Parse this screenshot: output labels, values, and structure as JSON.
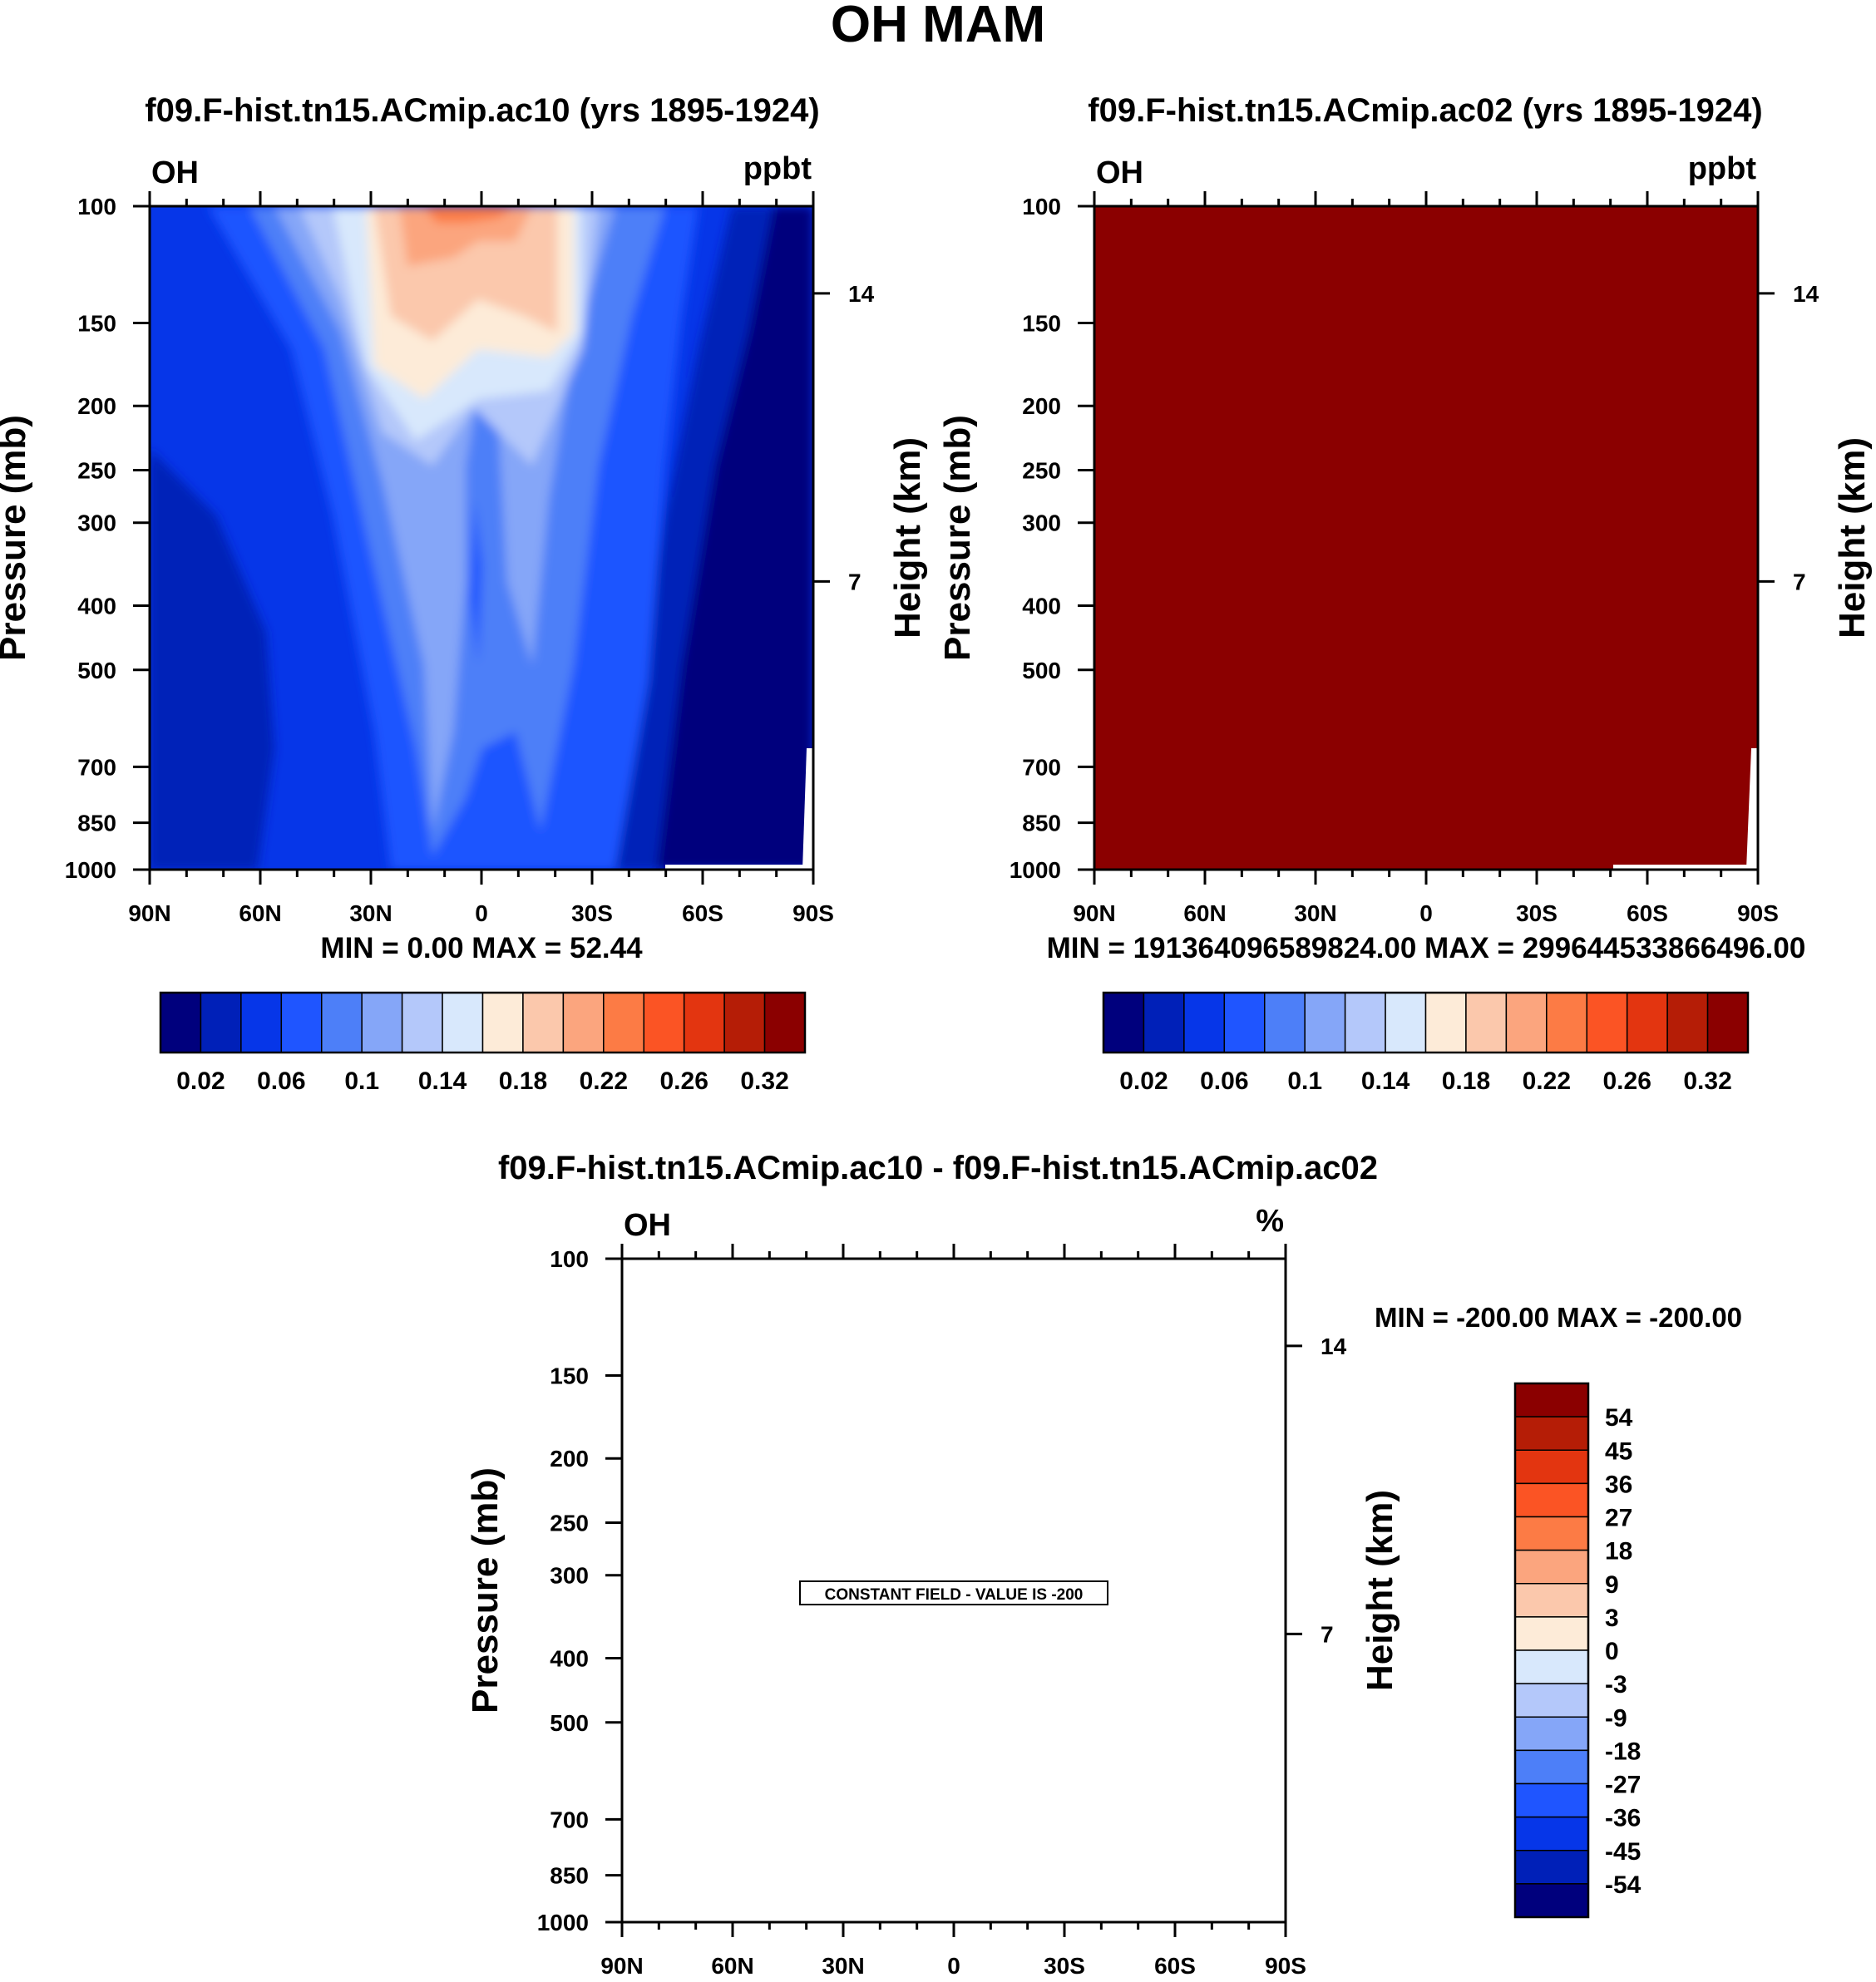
{
  "figure_title": "OH MAM",
  "chart_data": [
    {
      "type": "heatmap",
      "id": "panel-1",
      "title": "f09.F-hist.tn15.ACmip.ac10 (yrs 1895-1924)",
      "variable": "OH",
      "units": "ppbt",
      "ylabel": "Pressure (mb)",
      "ylabel_right": "Height (km)",
      "x_ticks": [
        "90N",
        "60N",
        "30N",
        "0",
        "30S",
        "60S",
        "90S"
      ],
      "y_ticks": [
        "100",
        "150",
        "200",
        "250",
        "300",
        "400",
        "500",
        "700",
        "850",
        "1000"
      ],
      "y_ticks_right": [
        "14",
        "7"
      ],
      "stats": "MIN =   0.00  MAX =  52.44",
      "colorbar_labels": [
        "0.02",
        "0.06",
        "0.1",
        "0.14",
        "0.18",
        "0.22",
        "0.26",
        "0.32"
      ],
      "colorbar_colors": [
        "#00007d",
        "#0020b8",
        "#0636e8",
        "#1f55ff",
        "#4d7ff8",
        "#85a6f8",
        "#b4c8fa",
        "#d8e8fc",
        "#fdebd8",
        "#fbc8ac",
        "#fba57e",
        "#fc7b45",
        "#fb5424",
        "#e33510",
        "#b51d06",
        "#8b0000"
      ],
      "field": "latitude-pressure contours; low near 90N and 90S, high (orange) near 100 mb between 30N and 20S"
    },
    {
      "type": "heatmap",
      "id": "panel-2",
      "title": "f09.F-hist.tn15.ACmip.ac02 (yrs 1895-1924)",
      "variable": "OH",
      "units": "ppbt",
      "ylabel": "Pressure (mb)",
      "ylabel_right": "Height (km)",
      "x_ticks": [
        "90N",
        "60N",
        "30N",
        "0",
        "30S",
        "60S",
        "90S"
      ],
      "y_ticks": [
        "100",
        "150",
        "200",
        "250",
        "300",
        "400",
        "500",
        "700",
        "850",
        "1000"
      ],
      "y_ticks_right": [
        "14",
        "7"
      ],
      "stats": "MIN = 191364096589824.00  MAX = 299644533866496.00",
      "colorbar_labels": [
        "0.02",
        "0.06",
        "0.1",
        "0.14",
        "0.18",
        "0.22",
        "0.26",
        "0.32"
      ],
      "colorbar_colors": [
        "#00007d",
        "#0020b8",
        "#0636e8",
        "#1f55ff",
        "#4d7ff8",
        "#85a6f8",
        "#b4c8fa",
        "#d8e8fc",
        "#fdebd8",
        "#fbc8ac",
        "#fba57e",
        "#fc7b45",
        "#fb5424",
        "#e33510",
        "#b51d06",
        "#8b0000"
      ],
      "fill_color": "#8b0000"
    },
    {
      "type": "heatmap",
      "id": "panel-diff",
      "title": "f09.F-hist.tn15.ACmip.ac10 - f09.F-hist.tn15.ACmip.ac02",
      "variable": "OH",
      "units": "%",
      "ylabel": "Pressure (mb)",
      "ylabel_right": "Height (km)",
      "x_ticks": [
        "90N",
        "60N",
        "30N",
        "0",
        "30S",
        "60S",
        "90S"
      ],
      "y_ticks": [
        "100",
        "150",
        "200",
        "250",
        "300",
        "400",
        "500",
        "700",
        "850",
        "1000"
      ],
      "y_ticks_right": [
        "14",
        "7"
      ],
      "stats": "MIN = -200.00  MAX = -200.00",
      "annotation": "CONSTANT FIELD - VALUE IS -200",
      "colorbar_labels": [
        "54",
        "45",
        "36",
        "27",
        "18",
        "9",
        "3",
        "0",
        "-3",
        "-9",
        "-18",
        "-27",
        "-36",
        "-45",
        "-54"
      ],
      "colorbar_colors": [
        "#8b0000",
        "#b51d06",
        "#e33510",
        "#fb5424",
        "#fc7b45",
        "#fba57e",
        "#fbc8ac",
        "#fdebd8",
        "#d8e8fc",
        "#b4c8fa",
        "#85a6f8",
        "#4d7ff8",
        "#1f55ff",
        "#0636e8",
        "#0020b8",
        "#00007d"
      ]
    }
  ]
}
